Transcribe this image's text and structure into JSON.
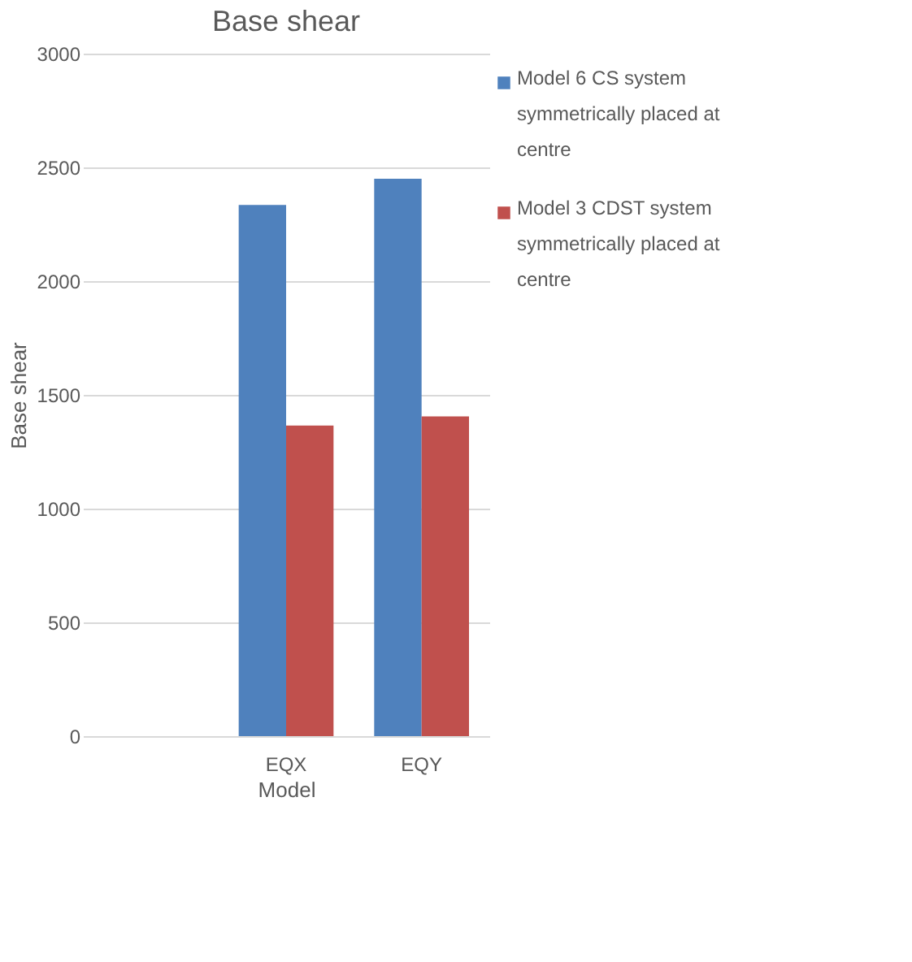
{
  "chart_data": {
    "type": "bar",
    "title": "Base shear",
    "xlabel": "Model",
    "ylabel": "Base shear",
    "categories": [
      null,
      "EQX",
      "EQY"
    ],
    "series": [
      {
        "name": "Model 6 CS system symmetrically placed at centre",
        "color": "#4f81bd",
        "values": [
          null,
          2335,
          2450
        ]
      },
      {
        "name": "Model 3 CDST system symmetrically placed at centre",
        "color": "#c0504d",
        "values": [
          null,
          1365,
          1405
        ]
      }
    ],
    "ylim": [
      0,
      3000
    ],
    "yticks": [
      0,
      500,
      1000,
      1500,
      2000,
      2500,
      3000
    ],
    "grid": "y",
    "legend": "right"
  }
}
